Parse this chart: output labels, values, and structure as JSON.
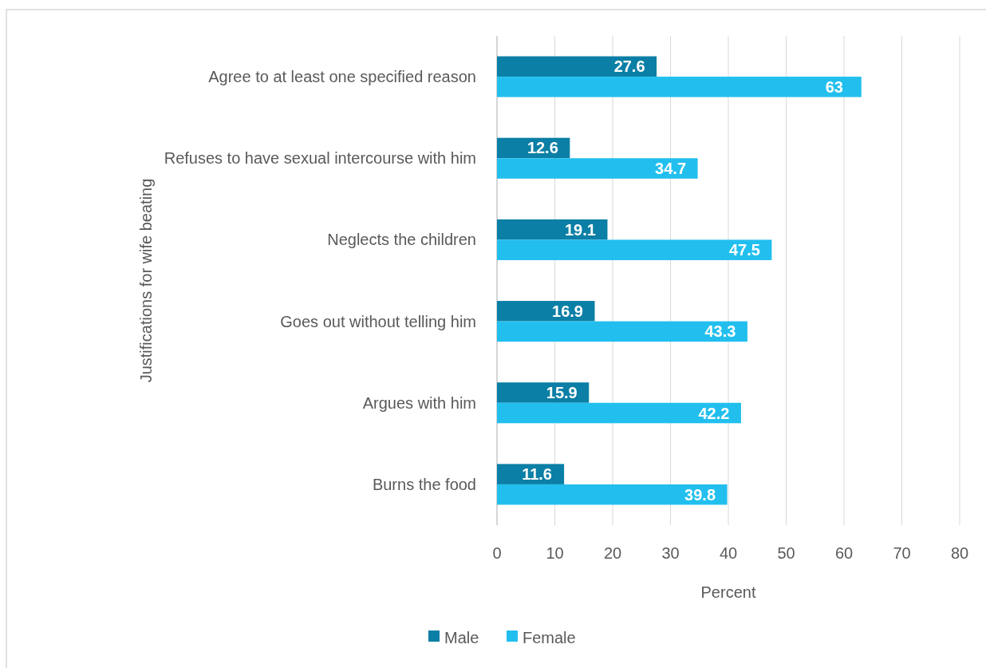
{
  "chart_data": {
    "type": "bar",
    "orientation": "horizontal",
    "xlabel": "Percent",
    "ylabel": "Justifications for wife beating",
    "categories": [
      "Agree to at least one specified reason",
      "Refuses to have sexual intercourse with him",
      "Neglects the children",
      "Goes out without telling him",
      "Argues with him",
      "Burns the food"
    ],
    "series": [
      {
        "name": "Male",
        "color": "#0b7fa5",
        "values": [
          27.6,
          12.6,
          19.1,
          16.9,
          15.9,
          11.6
        ]
      },
      {
        "name": "Female",
        "color": "#22bfee",
        "values": [
          63,
          34.7,
          47.5,
          43.3,
          42.2,
          39.8
        ]
      }
    ],
    "xlim": [
      0,
      80
    ],
    "xticks": [
      0,
      10,
      20,
      30,
      40,
      50,
      60,
      70,
      80
    ],
    "grid": "x",
    "legend": "bottom",
    "data_labels": true
  }
}
